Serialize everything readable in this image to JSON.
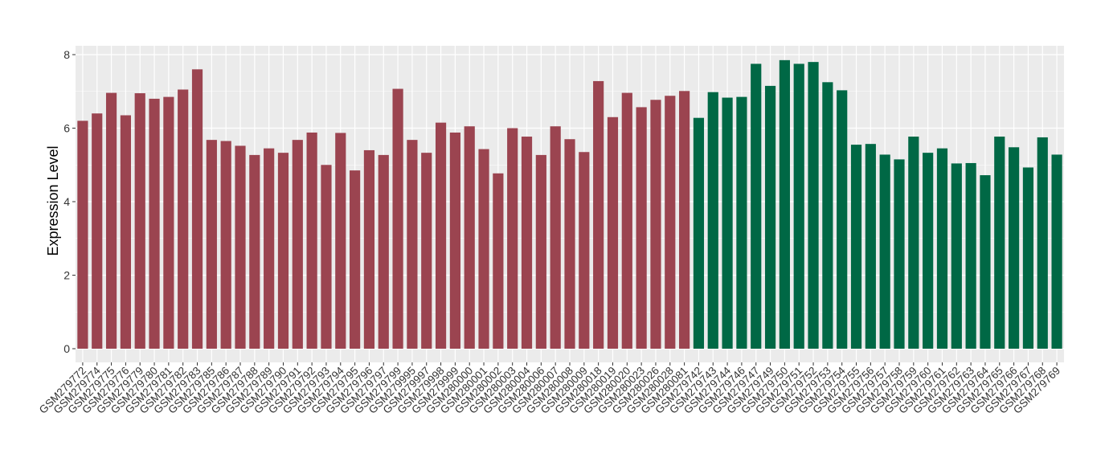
{
  "chart_data": {
    "type": "bar",
    "title": "",
    "xlabel": "",
    "ylabel": "Expression Level",
    "ylim": [
      0,
      8.3
    ],
    "yticks": [
      0,
      2,
      4,
      6,
      8
    ],
    "grid": true,
    "legend": "none",
    "colors": {
      "group1": "#9b4450",
      "group2": "#006845",
      "panel": "#ebebeb",
      "grid": "#ffffff"
    },
    "categories": [
      "GSM279772",
      "GSM279774",
      "GSM279775",
      "GSM279776",
      "GSM279779",
      "GSM279780",
      "GSM279781",
      "GSM279782",
      "GSM279783",
      "GSM279785",
      "GSM279786",
      "GSM279787",
      "GSM279788",
      "GSM279789",
      "GSM279790",
      "GSM279791",
      "GSM279792",
      "GSM279793",
      "GSM279794",
      "GSM279795",
      "GSM279796",
      "GSM279797",
      "GSM279799",
      "GSM279995",
      "GSM279997",
      "GSM279998",
      "GSM279999",
      "GSM280000",
      "GSM280001",
      "GSM280002",
      "GSM280003",
      "GSM280004",
      "GSM280006",
      "GSM280007",
      "GSM280008",
      "GSM280009",
      "GSM280018",
      "GSM280019",
      "GSM280020",
      "GSM280023",
      "GSM280026",
      "GSM280028",
      "GSM280081",
      "GSM279742",
      "GSM279743",
      "GSM279744",
      "GSM279746",
      "GSM279747",
      "GSM279749",
      "GSM279750",
      "GSM279751",
      "GSM279752",
      "GSM279753",
      "GSM279754",
      "GSM279755",
      "GSM279756",
      "GSM279757",
      "GSM279758",
      "GSM279759",
      "GSM279760",
      "GSM279761",
      "GSM279762",
      "GSM279763",
      "GSM279764",
      "GSM279765",
      "GSM279766",
      "GSM279767",
      "GSM279768",
      "GSM279769"
    ],
    "values": [
      6.2,
      6.4,
      6.96,
      6.35,
      6.95,
      6.8,
      6.85,
      7.05,
      7.6,
      5.68,
      5.65,
      5.52,
      5.27,
      5.45,
      5.33,
      5.68,
      5.88,
      5.0,
      5.87,
      4.85,
      5.4,
      5.27,
      7.07,
      5.68,
      5.33,
      6.15,
      5.88,
      6.05,
      5.43,
      4.77,
      6.0,
      5.77,
      5.27,
      6.05,
      5.7,
      5.35,
      7.28,
      6.3,
      6.96,
      6.57,
      6.77,
      6.88,
      7.01,
      6.28,
      6.98,
      6.83,
      6.85,
      7.75,
      7.15,
      7.85,
      7.75,
      7.8,
      7.25,
      7.03,
      5.55,
      5.57,
      5.28,
      5.15,
      5.77,
      5.33,
      5.45,
      5.04,
      5.05,
      4.72,
      5.77,
      5.48,
      4.93,
      5.75,
      5.28
    ],
    "groups": [
      1,
      1,
      1,
      1,
      1,
      1,
      1,
      1,
      1,
      1,
      1,
      1,
      1,
      1,
      1,
      1,
      1,
      1,
      1,
      1,
      1,
      1,
      1,
      1,
      1,
      1,
      1,
      1,
      1,
      1,
      1,
      1,
      1,
      1,
      1,
      1,
      1,
      1,
      1,
      1,
      1,
      1,
      1,
      2,
      2,
      2,
      2,
      2,
      2,
      2,
      2,
      2,
      2,
      2,
      2,
      2,
      2,
      2,
      2,
      2,
      2,
      2,
      2,
      2,
      2,
      2,
      2,
      2,
      2
    ]
  }
}
